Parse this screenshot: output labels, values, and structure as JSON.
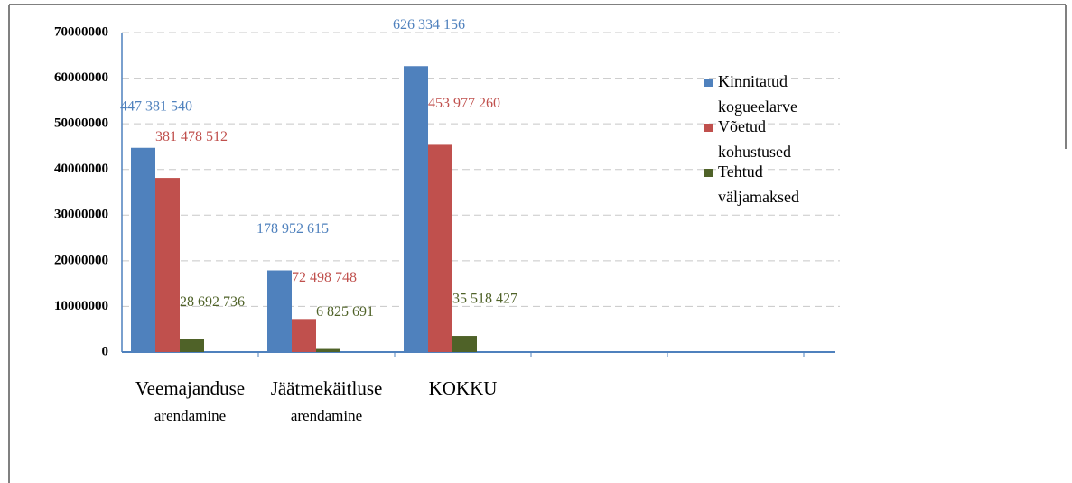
{
  "chart_data": {
    "type": "bar",
    "categories": [
      "Veemajanduse arendamine",
      "Jäätmekäitluse arendamine",
      "KOKKU",
      null,
      null
    ],
    "series": [
      {
        "name": "Kinnitatud kogueelarve",
        "color": "#4f81bd",
        "values": [
          44738154,
          17895262,
          62633416,
          null,
          null
        ],
        "value_labels": [
          "447 381 540",
          "178 952 615",
          "626 334 156",
          null,
          null
        ]
      },
      {
        "name": "Võetud kohustused",
        "color": "#c0504d",
        "values": [
          38147851,
          7249875,
          45397726,
          null,
          null
        ],
        "value_labels": [
          "381 478 512",
          "72 498 748",
          "453 977 260",
          null,
          null
        ]
      },
      {
        "name": "Tehtud väljamaksed",
        "color": "#4f6228",
        "values": [
          2869274,
          682569,
          3551843,
          null,
          null
        ],
        "value_labels": [
          "28 692 736",
          "6 825 691",
          "35 518 427",
          null,
          null
        ]
      }
    ],
    "ylim": [
      0,
      70000000
    ],
    "yticks": [
      0,
      10000000,
      20000000,
      30000000,
      40000000,
      50000000,
      60000000,
      70000000
    ],
    "grid": true,
    "legend": "right"
  }
}
